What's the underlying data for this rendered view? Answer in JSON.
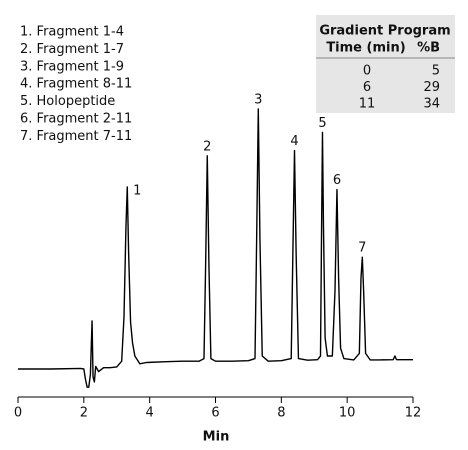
{
  "chart_data": {
    "type": "line",
    "legend_items": [
      "1. Fragment 1-4",
      "2. Fragment 1-7",
      "3. Fragment 1-9",
      "4. Fragment 8-11",
      "5. Holopeptide",
      "6. Fragment 2-11",
      "7. Fragment 7-11"
    ],
    "gradient_table": {
      "title": "Gradient Program",
      "columns": [
        "Time (min)",
        "%B"
      ],
      "rows": [
        [
          "0",
          "5"
        ],
        [
          "6",
          "29"
        ],
        [
          "11",
          "34"
        ]
      ]
    },
    "peak_labels": [
      "1",
      "2",
      "3",
      "4",
      "5",
      "6",
      "7"
    ],
    "xlabel": "Min",
    "xlim": [
      0,
      12
    ],
    "xticks": [
      0,
      2,
      4,
      6,
      8,
      10,
      12
    ],
    "ylim": [
      -10,
      105
    ],
    "color": "#000000",
    "x": [
      0,
      1,
      1.9,
      2.0,
      2.05,
      2.1,
      2.15,
      2.2,
      2.25,
      2.28,
      2.32,
      2.36,
      2.45,
      2.6,
      2.8,
      3.0,
      3.15,
      3.22,
      3.28,
      3.32,
      3.36,
      3.42,
      3.48,
      3.55,
      3.7,
      3.9,
      4.5,
      5.0,
      5.5,
      5.65,
      5.7,
      5.75,
      5.8,
      5.86,
      6.0,
      6.5,
      7.0,
      7.2,
      7.25,
      7.3,
      7.35,
      7.42,
      7.6,
      8.0,
      8.3,
      8.35,
      8.4,
      8.45,
      8.52,
      8.8,
      9.1,
      9.19,
      9.22,
      9.25,
      9.28,
      9.33,
      9.4,
      9.55,
      9.63,
      9.69,
      9.74,
      9.8,
      9.9,
      10.2,
      10.37,
      10.42,
      10.46,
      10.5,
      10.56,
      10.7,
      11.0,
      11.4,
      11.45,
      11.5,
      12.0
    ],
    "values": [
      0,
      0,
      0.2,
      0,
      -4,
      -7,
      -7,
      -2,
      18.5,
      -3,
      -5,
      1,
      -1,
      0.5,
      0.5,
      0.8,
      3,
      20,
      55,
      70,
      45,
      18,
      10,
      5,
      2,
      2.5,
      2.8,
      3,
      3,
      4,
      40,
      82,
      40,
      4,
      3,
      3,
      3.2,
      4,
      50,
      100,
      50,
      5,
      3,
      3.2,
      4,
      44,
      84,
      44,
      4,
      3.4,
      3.6,
      5,
      50,
      91,
      55,
      12,
      5,
      5,
      30,
      69,
      35,
      8,
      4,
      3.5,
      6,
      35,
      43,
      30,
      6,
      3.5,
      3.5,
      3.6,
      5,
      3.6,
      3.6
    ]
  }
}
